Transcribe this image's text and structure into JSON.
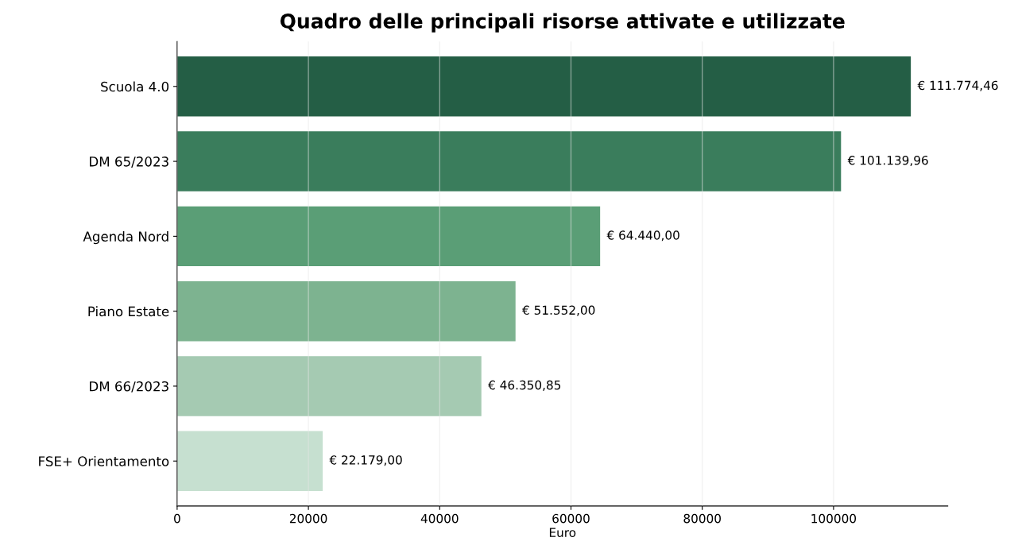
{
  "chart_data": {
    "type": "bar",
    "orientation": "horizontal",
    "title": "Quadro delle principali risorse attivate e utilizzate",
    "xlabel": "Euro",
    "categories": [
      "Scuola 4.0",
      "DM 65/2023",
      "Agenda Nord",
      "Piano Estate",
      "DM 66/2023",
      "FSE+ Orientamento"
    ],
    "values": [
      111774.46,
      101139.96,
      64440.0,
      51552.0,
      46350.85,
      22179.0
    ],
    "colors": [
      "#245e45",
      "#3a7d5c",
      "#5a9e76",
      "#7db390",
      "#a5cab2",
      "#c6e0d0"
    ],
    "value_labels": [
      "€ 111.774,46",
      "€ 101.139,96",
      "€ 64.440,00",
      "€ 51.552,00",
      "€ 46.350,85",
      "€ 22.179,00"
    ],
    "xlim": [
      0,
      117400
    ],
    "xticks": [
      0,
      20000,
      40000,
      60000,
      80000,
      100000
    ],
    "grid": "x"
  }
}
